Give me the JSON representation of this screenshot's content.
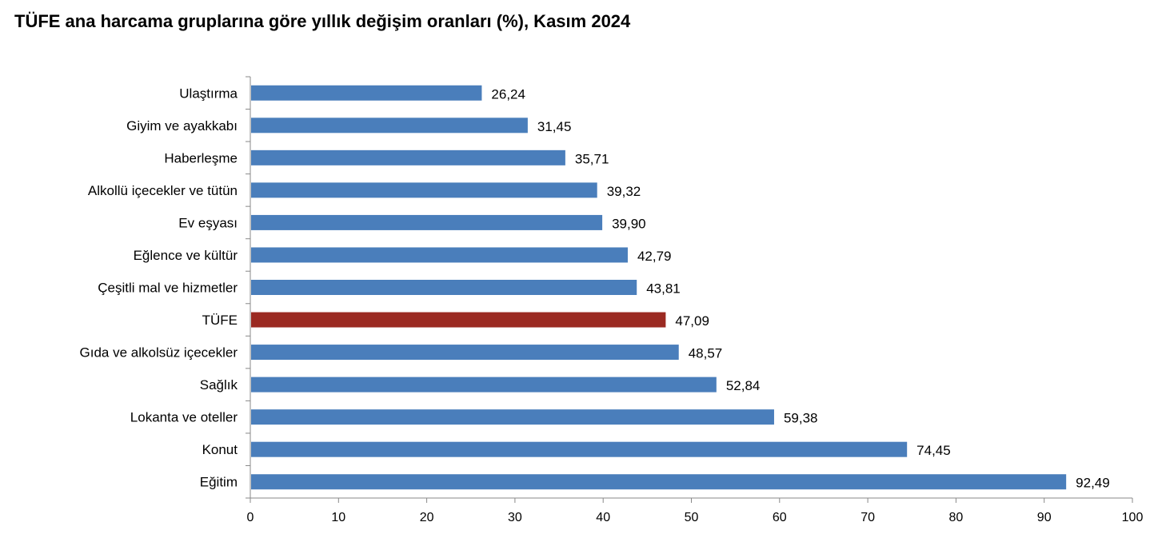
{
  "title": "TÜFE ana harcama gruplarına göre yıllık değişim oranları (%), Kasım 2024",
  "colors": {
    "bar": "#4a7ebb",
    "highlight": "#9b2a22",
    "axis": "#888888"
  },
  "chart_data": {
    "type": "bar",
    "orientation": "horizontal",
    "title": "TÜFE ana harcama gruplarına göre yıllık değişim oranları (%), Kasım 2024",
    "categories": [
      "Ulaştırma",
      "Giyim ve ayakkabı",
      "Haberleşme",
      "Alkollü içecekler ve tütün",
      "Ev eşyası",
      "Eğlence ve kültür",
      "Çeşitli mal ve hizmetler",
      "TÜFE",
      "Gıda ve alkolsüz içecekler",
      "Sağlık",
      "Lokanta ve oteller",
      "Konut",
      "Eğitim"
    ],
    "values": [
      26.24,
      31.45,
      35.71,
      39.32,
      39.9,
      42.79,
      43.81,
      47.09,
      48.57,
      52.84,
      59.38,
      74.45,
      92.49
    ],
    "value_labels": [
      "26,24",
      "31,45",
      "35,71",
      "39,32",
      "39,90",
      "42,79",
      "43,81",
      "47,09",
      "48,57",
      "52,84",
      "59,38",
      "74,45",
      "92,49"
    ],
    "highlight_category": "TÜFE",
    "xlim": [
      0,
      100
    ],
    "xticks": [
      0,
      10,
      20,
      30,
      40,
      50,
      60,
      70,
      80,
      90,
      100
    ],
    "grid": false,
    "legend": "none"
  }
}
